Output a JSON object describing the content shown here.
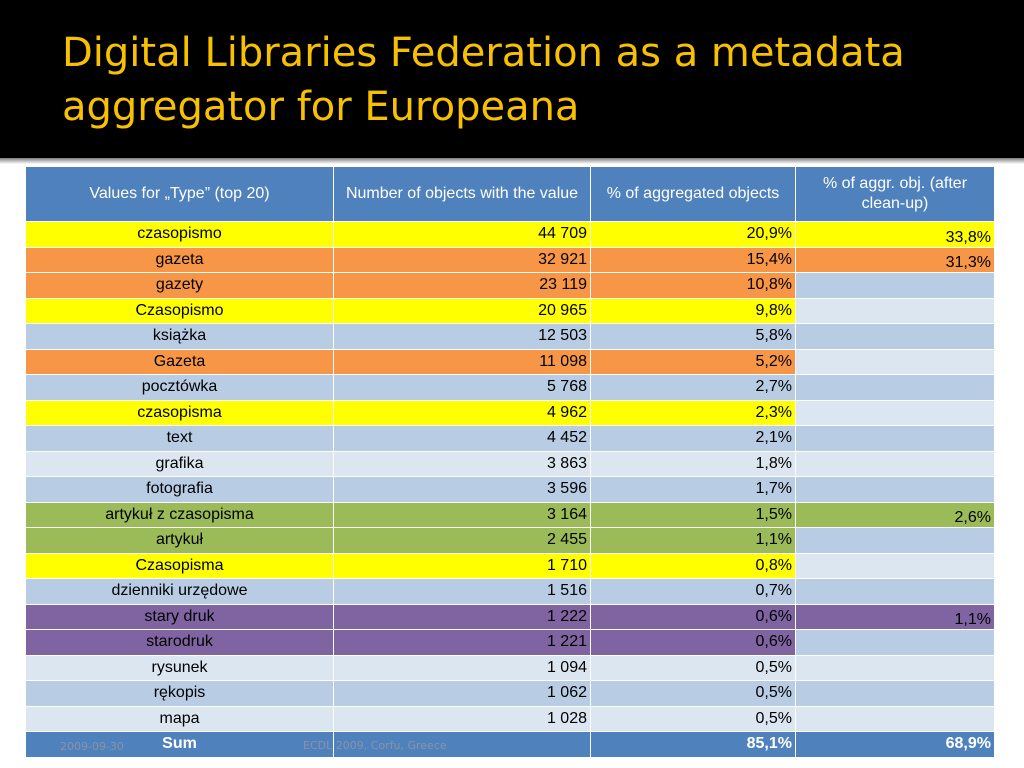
{
  "title": "Digital Libraries Federation as a metadata aggregator for Europeana",
  "colors": {
    "yellow": "#ffff00",
    "orange": "#f79646",
    "green": "#9bbb59",
    "purple": "#8064a2",
    "blue_dark": "#b8cce4",
    "blue_light": "#dce6f1",
    "header": "#4f81bd",
    "title_text": "#f7c100"
  },
  "table": {
    "headers": [
      "Values for „Type” (top 20)",
      "Number of objects with the value",
      "% of aggregated objects",
      "% of aggr. obj. (after clean-up)"
    ],
    "rows": [
      {
        "name": "czasopismo",
        "count": "44 709",
        "pct": "20,9%",
        "clean": "33,8%",
        "color": "#ffff00",
        "clean_color": "#ffff00"
      },
      {
        "name": "gazeta",
        "count": "32 921",
        "pct": "15,4%",
        "clean": "31,3%",
        "color": "#f79646",
        "clean_color": "#f79646"
      },
      {
        "name": "gazety",
        "count": "23 119",
        "pct": "10,8%",
        "clean": "",
        "color": "#f79646",
        "clean_color": "#b8cce4"
      },
      {
        "name": "Czasopismo",
        "count": "20 965",
        "pct": "9,8%",
        "clean": "",
        "color": "#ffff00",
        "clean_color": "#dce6f1"
      },
      {
        "name": "książka",
        "count": "12 503",
        "pct": "5,8%",
        "clean": "",
        "color": "#b8cce4",
        "clean_color": "#b8cce4"
      },
      {
        "name": "Gazeta",
        "count": "11 098",
        "pct": "5,2%",
        "clean": "",
        "color": "#f79646",
        "clean_color": "#dce6f1"
      },
      {
        "name": "pocztówka",
        "count": "5 768",
        "pct": "2,7%",
        "clean": "",
        "color": "#b8cce4",
        "clean_color": "#b8cce4"
      },
      {
        "name": "czasopisma",
        "count": "4 962",
        "pct": "2,3%",
        "clean": "",
        "color": "#ffff00",
        "clean_color": "#dce6f1"
      },
      {
        "name": "text",
        "count": "4 452",
        "pct": "2,1%",
        "clean": "",
        "color": "#b8cce4",
        "clean_color": "#b8cce4"
      },
      {
        "name": "grafika",
        "count": "3 863",
        "pct": "1,8%",
        "clean": "",
        "color": "#dce6f1",
        "clean_color": "#dce6f1"
      },
      {
        "name": "fotografia",
        "count": "3 596",
        "pct": "1,7%",
        "clean": "",
        "color": "#b8cce4",
        "clean_color": "#b8cce4"
      },
      {
        "name": "artykuł z czasopisma",
        "count": "3 164",
        "pct": "1,5%",
        "clean": "2,6%",
        "color": "#9bbb59",
        "clean_color": "#9bbb59"
      },
      {
        "name": "artykuł",
        "count": "2 455",
        "pct": "1,1%",
        "clean": "",
        "color": "#9bbb59",
        "clean_color": "#b8cce4"
      },
      {
        "name": "Czasopisma",
        "count": "1 710",
        "pct": "0,8%",
        "clean": "",
        "color": "#ffff00",
        "clean_color": "#dce6f1"
      },
      {
        "name": "dzienniki urzędowe",
        "count": "1 516",
        "pct": "0,7%",
        "clean": "",
        "color": "#b8cce4",
        "clean_color": "#b8cce4"
      },
      {
        "name": "stary druk",
        "count": "1 222",
        "pct": "0,6%",
        "clean": "1,1%",
        "color": "#8064a2",
        "clean_color": "#8064a2"
      },
      {
        "name": "starodruk",
        "count": "1 221",
        "pct": "0,6%",
        "clean": "",
        "color": "#8064a2",
        "clean_color": "#b8cce4"
      },
      {
        "name": "rysunek",
        "count": "1 094",
        "pct": "0,5%",
        "clean": "",
        "color": "#dce6f1",
        "clean_color": "#dce6f1"
      },
      {
        "name": "rękopis",
        "count": "1 062",
        "pct": "0,5%",
        "clean": "",
        "color": "#b8cce4",
        "clean_color": "#b8cce4"
      },
      {
        "name": "mapa",
        "count": "1 028",
        "pct": "0,5%",
        "clean": "",
        "color": "#dce6f1",
        "clean_color": "#dce6f1"
      }
    ],
    "sum": {
      "label": "Sum",
      "count": "",
      "pct": "85,1%",
      "clean": "68,9%"
    }
  },
  "footer": {
    "date": "2009-09-30",
    "conference": "ECDL 2009, Corfu, Greece"
  }
}
